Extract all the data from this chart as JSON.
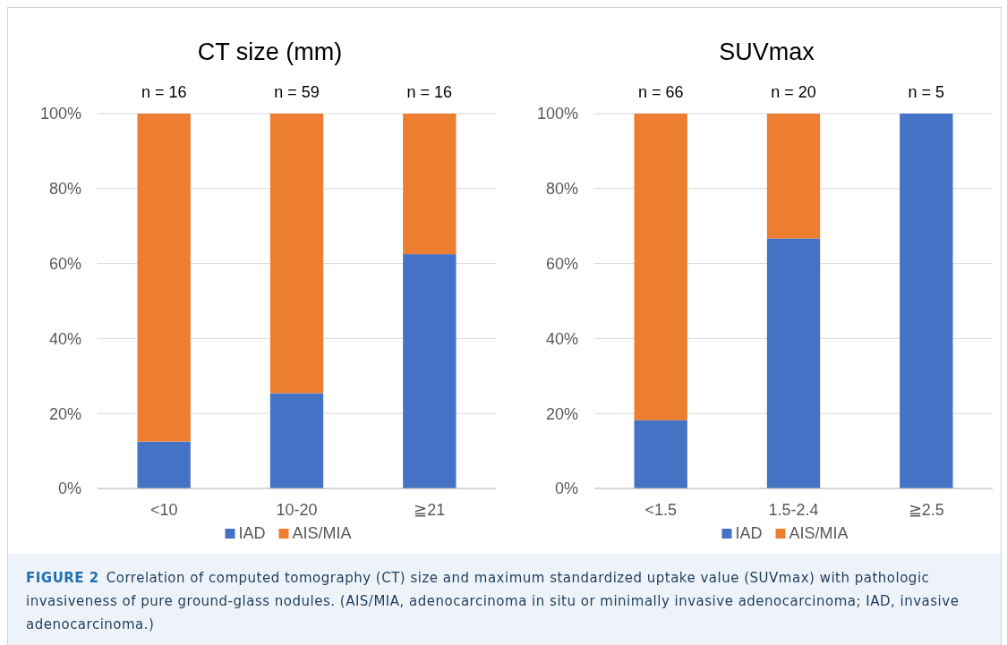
{
  "chart_data": [
    {
      "type": "bar",
      "title": "CT size (mm)",
      "categories": [
        "<10",
        "10-20",
        "≧21"
      ],
      "stacked": true,
      "series": [
        {
          "name": "IAD",
          "color": "#4472c4",
          "values": [
            12.5,
            25.4,
            62.5
          ]
        },
        {
          "name": "AIS/MIA",
          "color": "#ed7d31",
          "values": [
            87.5,
            74.6,
            37.5
          ]
        }
      ],
      "ylim": [
        0,
        100
      ],
      "yticks": [
        {
          "value": 0,
          "label": "0%"
        },
        {
          "value": 20,
          "label": "20%"
        },
        {
          "value": 40,
          "label": "40%"
        },
        {
          "value": 60,
          "label": "60%"
        },
        {
          "value": 80,
          "label": "80%"
        },
        {
          "value": 100,
          "label": "100%"
        }
      ],
      "grid": "y",
      "legend": "bottom",
      "annotations": [
        "n = 16",
        "n = 59",
        "n = 16"
      ]
    },
    {
      "type": "bar",
      "title": "SUVmax",
      "categories": [
        "<1.5",
        "1.5-2.4",
        "≧2.5"
      ],
      "stacked": true,
      "series": [
        {
          "name": "IAD",
          "color": "#4472c4",
          "values": [
            18.2,
            66.7,
            100
          ]
        },
        {
          "name": "AIS/MIA",
          "color": "#ed7d31",
          "values": [
            81.8,
            33.3,
            0
          ]
        }
      ],
      "ylim": [
        0,
        100
      ],
      "yticks": [
        {
          "value": 0,
          "label": "0%"
        },
        {
          "value": 20,
          "label": "20%"
        },
        {
          "value": 40,
          "label": "40%"
        },
        {
          "value": 60,
          "label": "60%"
        },
        {
          "value": 80,
          "label": "80%"
        },
        {
          "value": 100,
          "label": "100%"
        }
      ],
      "grid": "y",
      "legend": "bottom",
      "annotations": [
        "n = 66",
        "n = 20",
        "n = 5"
      ]
    },
    {
      "type": "other",
      "annotations": [
        "FIGURE 2",
        "Correlation of computed tomography (CT) size and maximum standardized uptake value (SUVmax) with pathologic invasiveness of pure ground-glass nodules. (AIS/MIA, adenocarcinoma in situ or minimally invasive adenocarcinoma; IAD, invasive adenocarcinoma.)"
      ]
    }
  ]
}
